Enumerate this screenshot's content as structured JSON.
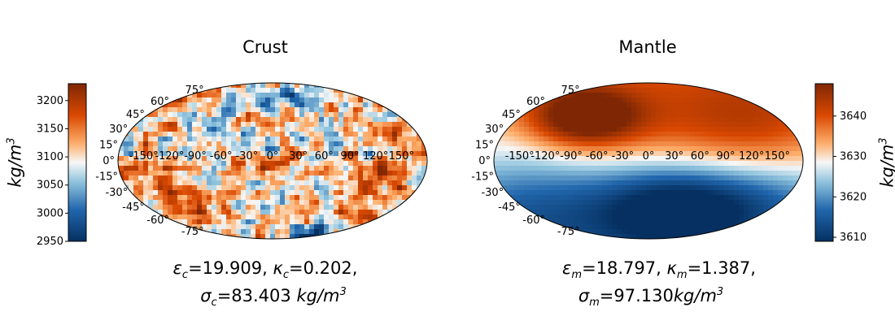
{
  "chart_data": [
    {
      "type": "heatmap",
      "projection": "mollweide",
      "title": "Crust",
      "caption_line1": {
        "eps_sym": "ε",
        "eps_sub": "c",
        "eps_val": "=19.909, ",
        "kap_sym": "κ",
        "kap_sub": "c",
        "kap_val": "=0.202,"
      },
      "caption_line2": {
        "sig_sym": "σ",
        "sig_sub": "c",
        "sig_val": "=83.403 ",
        "unit": "kg/m",
        "unit_sup": "3"
      },
      "colorbar": {
        "position": "left",
        "label": "kg/m",
        "label_sup": "3",
        "min": 2950,
        "max": 3230,
        "ticks": [
          2950,
          3000,
          3050,
          3100,
          3150,
          3200
        ]
      },
      "lat_ticks": [
        "75°",
        "60°",
        "45°",
        "30°",
        "15°",
        "0°",
        "-15°",
        "-30°",
        "-45°",
        "-60°",
        "-75°"
      ],
      "lon_ticks": [
        "-150°",
        "-120°",
        "-90°",
        "-60°",
        "-30°",
        "0°",
        "30°",
        "60°",
        "90°",
        "120°",
        "150°"
      ],
      "field": "noise"
    },
    {
      "type": "heatmap",
      "projection": "mollweide",
      "title": "Mantle",
      "caption_line1": {
        "eps_sym": "ε",
        "eps_sub": "m",
        "eps_val": "=18.797, ",
        "kap_sym": "κ",
        "kap_sub": "m",
        "kap_val": "=1.387,"
      },
      "caption_line2": {
        "sig_sym": "σ",
        "sig_sub": "m",
        "sig_val": "=97.130",
        "unit": "kg/m",
        "unit_sup": "3"
      },
      "colorbar": {
        "position": "right",
        "label": "kg/m",
        "label_sup": "3",
        "min": 3609,
        "max": 3648,
        "ticks": [
          3610,
          3620,
          3630,
          3640
        ]
      },
      "lat_ticks": [
        "75°",
        "60°",
        "45°",
        "30°",
        "15°",
        "0°",
        "-15°",
        "-30°",
        "-45°",
        "-60°",
        "-75°"
      ],
      "lon_ticks": [
        "-150°",
        "-120°",
        "-90°",
        "-60°",
        "-30°",
        "0°",
        "30°",
        "60°",
        "90°",
        "120°",
        "150°"
      ],
      "field": "smooth"
    }
  ],
  "colors": {
    "low": "#053061",
    "mid": "#f7f7f7",
    "high": "#7f2704"
  }
}
